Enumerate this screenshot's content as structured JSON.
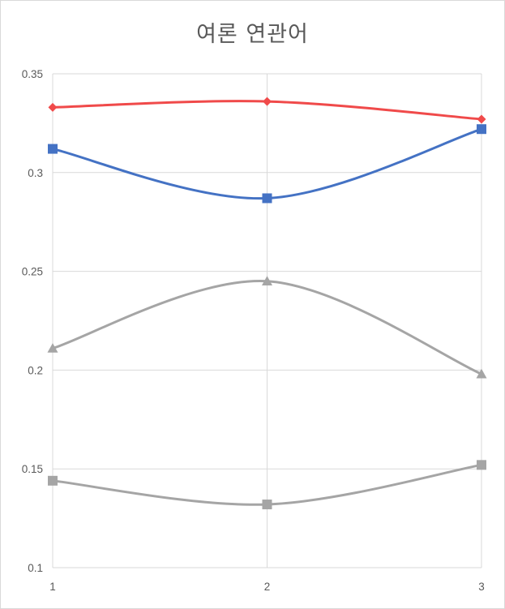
{
  "chart_data": {
    "type": "line",
    "title": "여론 연관어",
    "xlabel": "",
    "ylabel": "",
    "categories": [
      "1",
      "2",
      "3"
    ],
    "ylim": [
      0.1,
      0.35
    ],
    "yticks": [
      "0.1",
      "0.15",
      "0.2",
      "0.25",
      "0.3",
      "0.35"
    ],
    "grid": true,
    "legend": "none",
    "smooth": true,
    "series": [
      {
        "color": "#f04a4a",
        "marker": "diamond",
        "values": [
          0.333,
          0.336,
          0.327
        ]
      },
      {
        "color": "#4472c4",
        "marker": "square",
        "values": [
          0.312,
          0.287,
          0.322
        ]
      },
      {
        "color": "#a5a5a5",
        "marker": "triangle",
        "values": [
          0.211,
          0.245,
          0.198
        ]
      },
      {
        "color": "#a5a5a5",
        "marker": "square",
        "values": [
          0.144,
          0.132,
          0.152
        ]
      }
    ]
  }
}
